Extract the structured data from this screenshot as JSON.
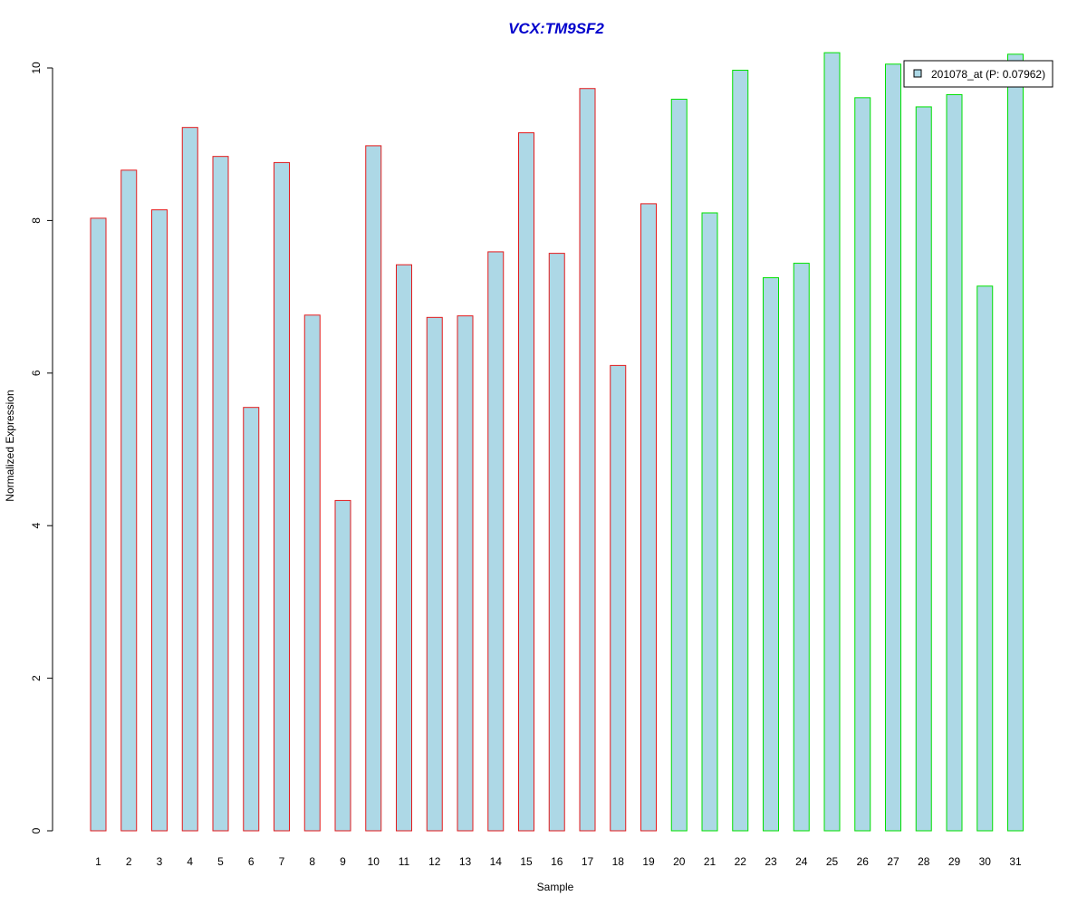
{
  "chart_data": {
    "type": "bar",
    "title": "VCX:TM9SF2",
    "xlabel": "Sample",
    "ylabel": "Normalized Expression",
    "ylim": [
      0,
      10
    ],
    "yticks": [
      0,
      2,
      4,
      6,
      8,
      10
    ],
    "categories": [
      "1",
      "2",
      "3",
      "4",
      "5",
      "6",
      "7",
      "8",
      "9",
      "10",
      "11",
      "12",
      "13",
      "14",
      "15",
      "16",
      "17",
      "18",
      "19",
      "20",
      "21",
      "22",
      "23",
      "24",
      "25",
      "26",
      "27",
      "28",
      "29",
      "30",
      "31"
    ],
    "series": [
      {
        "name": "201078_at (P: 0.07962)",
        "values": [
          8.03,
          8.66,
          8.14,
          9.22,
          8.84,
          5.55,
          8.76,
          6.76,
          4.33,
          8.98,
          7.42,
          6.73,
          6.75,
          7.59,
          9.15,
          7.57,
          9.73,
          6.1,
          8.22,
          9.59,
          8.1,
          9.97,
          7.25,
          7.44,
          10.2,
          9.61,
          10.05,
          9.49,
          9.65,
          7.14,
          10.18
        ]
      }
    ],
    "groups": [
      {
        "samples": [
          1,
          19
        ],
        "border_color": "#e31a1c"
      },
      {
        "samples": [
          20,
          31
        ],
        "border_color": "#00e000"
      }
    ],
    "bar_fill": "#add8e6",
    "title_color": "#0000cc",
    "legend": {
      "position": "top-right",
      "label": "201078_at (P: 0.07962)"
    },
    "grid": false
  }
}
